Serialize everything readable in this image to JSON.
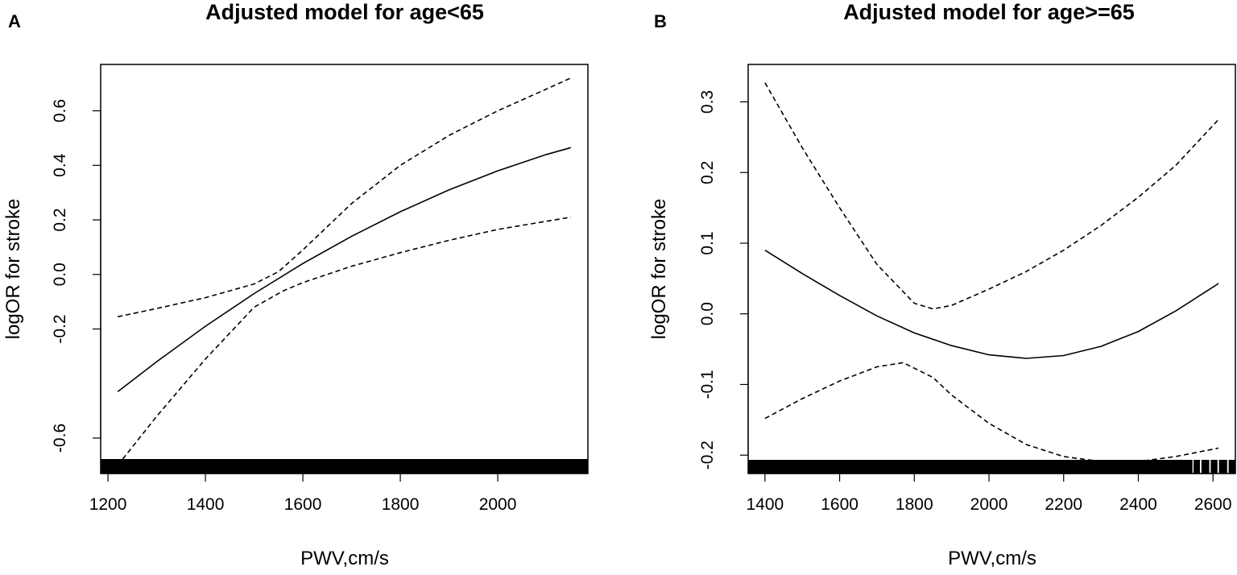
{
  "chart_data": [
    {
      "panel": "A",
      "type": "line",
      "title": "Adjusted model for age<65",
      "xlabel": "PWV,cm/s",
      "ylabel": "logOR for stroke",
      "xlim": [
        1185,
        2185
      ],
      "ylim": [
        -0.73,
        0.77
      ],
      "x_ticks": [
        1200,
        1400,
        1600,
        1800,
        2000
      ],
      "y_ticks": [
        -0.6,
        -0.2,
        0.0,
        0.2,
        0.4,
        0.6
      ],
      "series": [
        {
          "name": "estimate",
          "style": "solid",
          "x": [
            1220,
            1300,
            1400,
            1500,
            1600,
            1700,
            1800,
            1900,
            2000,
            2100,
            2150
          ],
          "y": [
            -0.43,
            -0.32,
            -0.19,
            -0.07,
            0.04,
            0.14,
            0.23,
            0.31,
            0.38,
            0.44,
            0.465
          ]
        },
        {
          "name": "upper 95% CI",
          "style": "dashed",
          "x": [
            1220,
            1300,
            1400,
            1500,
            1550,
            1600,
            1700,
            1800,
            1900,
            2000,
            2100,
            2150
          ],
          "y": [
            -0.155,
            -0.125,
            -0.085,
            -0.035,
            0.01,
            0.09,
            0.26,
            0.4,
            0.51,
            0.6,
            0.68,
            0.72
          ]
        },
        {
          "name": "lower 95% CI",
          "style": "dashed",
          "x": [
            1220,
            1300,
            1400,
            1500,
            1560,
            1600,
            1700,
            1800,
            1900,
            2000,
            2100,
            2150
          ],
          "y": [
            -0.7,
            -0.52,
            -0.31,
            -0.12,
            -0.06,
            -0.03,
            0.03,
            0.08,
            0.125,
            0.165,
            0.195,
            0.21
          ]
        }
      ],
      "rug": [
        {
          "from": 1185,
          "to": 2185
        }
      ]
    },
    {
      "panel": "B",
      "type": "line",
      "title": "Adjusted model for age>=65",
      "xlabel": "PWV,cm/s",
      "ylabel": "logOR for stroke",
      "xlim": [
        1355,
        2660
      ],
      "ylim": [
        -0.226,
        0.353
      ],
      "x_ticks": [
        1400,
        1600,
        1800,
        2000,
        2200,
        2400,
        2600
      ],
      "y_ticks": [
        -0.2,
        -0.1,
        0.0,
        0.1,
        0.2,
        0.3
      ],
      "series": [
        {
          "name": "estimate",
          "style": "solid",
          "x": [
            1400,
            1500,
            1600,
            1700,
            1800,
            1900,
            2000,
            2100,
            2200,
            2300,
            2400,
            2500,
            2600,
            2615
          ],
          "y": [
            0.09,
            0.057,
            0.026,
            -0.003,
            -0.027,
            -0.045,
            -0.058,
            -0.063,
            -0.059,
            -0.046,
            -0.025,
            0.004,
            0.038,
            0.043
          ]
        },
        {
          "name": "upper 95% CI",
          "style": "dashed",
          "x": [
            1400,
            1500,
            1600,
            1700,
            1800,
            1850,
            1900,
            2000,
            2100,
            2200,
            2300,
            2400,
            2500,
            2615
          ],
          "y": [
            0.327,
            0.235,
            0.15,
            0.07,
            0.015,
            0.007,
            0.012,
            0.035,
            0.06,
            0.09,
            0.125,
            0.165,
            0.21,
            0.275
          ]
        },
        {
          "name": "lower 95% CI",
          "style": "dashed",
          "x": [
            1400,
            1500,
            1600,
            1700,
            1770,
            1850,
            1900,
            2000,
            2100,
            2200,
            2300,
            2400,
            2500,
            2615
          ],
          "y": [
            -0.148,
            -0.12,
            -0.095,
            -0.075,
            -0.069,
            -0.09,
            -0.115,
            -0.155,
            -0.185,
            -0.202,
            -0.209,
            -0.209,
            -0.202,
            -0.19
          ]
        }
      ],
      "rug": [
        {
          "from": 1355,
          "to": 2545
        },
        {
          "from": 2548,
          "to": 2565
        },
        {
          "from": 2569,
          "to": 2590
        },
        {
          "from": 2594,
          "to": 2612
        },
        {
          "from": 2616,
          "to": 2638
        },
        {
          "from": 2642,
          "to": 2660
        }
      ]
    }
  ]
}
